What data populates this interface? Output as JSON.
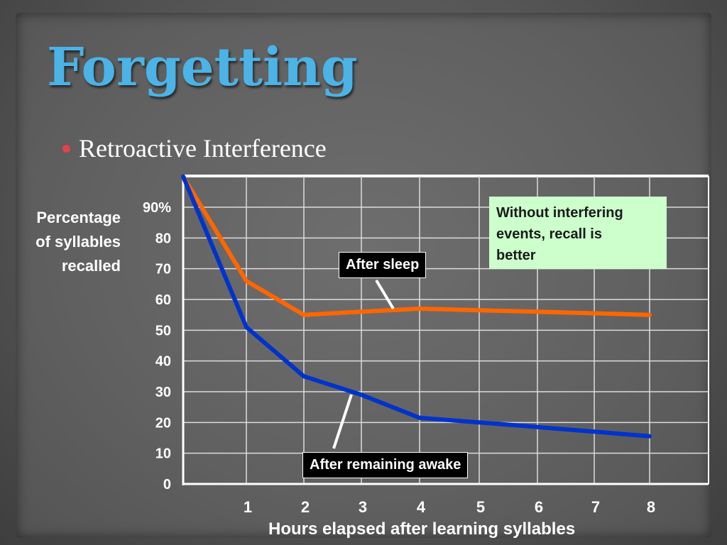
{
  "slide": {
    "title": "Forgetting",
    "bullet": "Retroactive Interference",
    "bullet_color": "#e8404a",
    "title_color": "#4bb3e6"
  },
  "chart_data": {
    "type": "line",
    "title": "",
    "ylabel_lines": [
      "Percentage",
      "of syllables",
      "recalled"
    ],
    "xlabel": "Hours elapsed after learning syllables",
    "x": [
      0,
      1,
      2,
      3,
      4,
      5,
      6,
      7,
      8
    ],
    "x_tick_labels": [
      "1",
      "2",
      "3",
      "4",
      "5",
      "6",
      "7",
      "8"
    ],
    "y_tick_labels": [
      "0",
      "10",
      "20",
      "30",
      "40",
      "50",
      "60",
      "70",
      "80",
      "90%"
    ],
    "ylim": [
      0,
      100
    ],
    "xlim": [
      0,
      8
    ],
    "grid": true,
    "series": [
      {
        "name": "After sleep",
        "color": "#ff6600",
        "points": [
          [
            0,
            100
          ],
          [
            1,
            66
          ],
          [
            2,
            55
          ],
          [
            3,
            56
          ],
          [
            4,
            57
          ],
          [
            5,
            56.5
          ],
          [
            6,
            56
          ],
          [
            7,
            55.5
          ],
          [
            8,
            55
          ]
        ]
      },
      {
        "name": "After remaining awake",
        "color": "#0033cc",
        "points": [
          [
            0,
            100
          ],
          [
            1,
            51
          ],
          [
            2,
            35
          ],
          [
            3,
            29
          ],
          [
            4,
            21.5
          ],
          [
            5,
            20
          ],
          [
            6,
            18.5
          ],
          [
            7,
            17
          ],
          [
            8,
            15.5
          ]
        ]
      }
    ],
    "annotations": {
      "sleep_tag": "After sleep",
      "awake_tag": "After remaining awake",
      "note_lines": [
        "Without interfering",
        "events, recall is",
        "better"
      ]
    }
  }
}
